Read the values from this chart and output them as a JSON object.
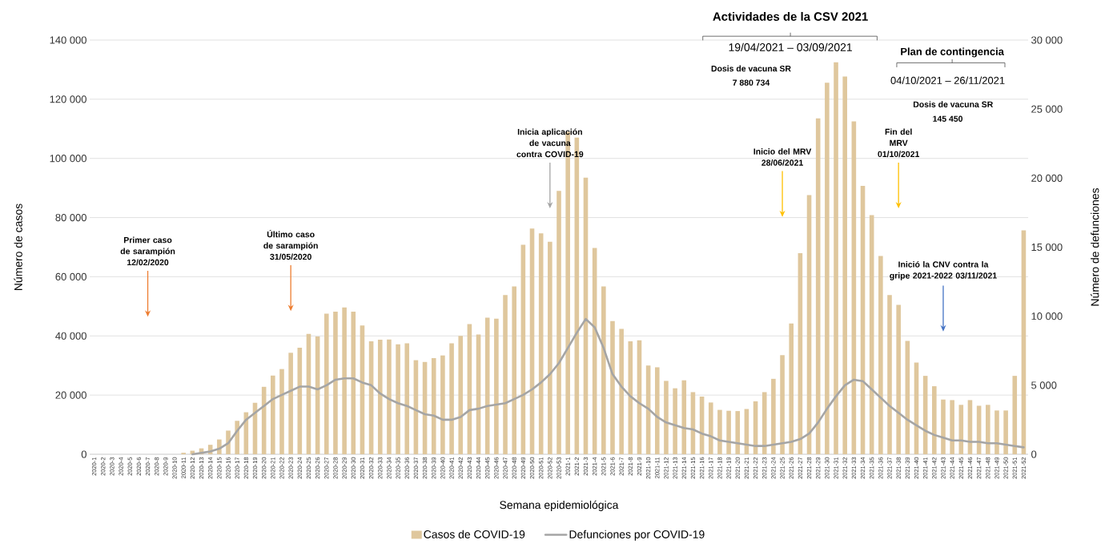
{
  "chart_data": {
    "type": "bar",
    "xlabel": "Semana epidemiológica",
    "ylabel": "Número de casos",
    "y2label": "Número de defunciones",
    "categories": [
      "2020-1",
      "2020-2",
      "2020-3",
      "2020-4",
      "2020-5",
      "2020-6",
      "2020-7",
      "2020-8",
      "2020-9",
      "2020-10",
      "2020-11",
      "2020-12",
      "2020-13",
      "2020-14",
      "2020-15",
      "2020-16",
      "2020-17",
      "2020-18",
      "2020-19",
      "2020-20",
      "2020-21",
      "2020-22",
      "2020-23",
      "2020-24",
      "2020-25",
      "2020-26",
      "2020-27",
      "2020-28",
      "2020-29",
      "2020-30",
      "2020-31",
      "2020-32",
      "2020-33",
      "2020-34",
      "2020-35",
      "2020-36",
      "2020-37",
      "2020-38",
      "2020-39",
      "2020-40",
      "2020-41",
      "2020-42",
      "2020-43",
      "2020-44",
      "2020-45",
      "2020-46",
      "2020-47",
      "2020-48",
      "2020-49",
      "2020-50",
      "2020-51",
      "2020-52",
      "2020-53",
      "2021-1",
      "2021-2",
      "2021-3",
      "2021-4",
      "2021-5",
      "2021-6",
      "2021-7",
      "2021-8",
      "2021-9",
      "2021-10",
      "2021-11",
      "2021-12",
      "2021-13",
      "2021-14",
      "2021-15",
      "2021-16",
      "2021-17",
      "2021-18",
      "2021-19",
      "2021-20",
      "2021-21",
      "2021-22",
      "2021-23",
      "2021-24",
      "2021-25",
      "2021-26",
      "2021-27",
      "2021-28",
      "2021-29",
      "2021-30",
      "2021-31",
      "2021-32",
      "2021-33",
      "2021-34",
      "2021-35",
      "2021-36",
      "2021-37",
      "2021-38",
      "2021-39",
      "2021-40",
      "2021-41",
      "2021-42",
      "2021-43",
      "2021-44",
      "2021-45",
      "2021-46",
      "2021-47",
      "2021-48",
      "2021-49",
      "2021-50",
      "2021-51",
      "2021-52"
    ],
    "series": [
      {
        "name": "Casos de COVID-19",
        "color": "#dfc79d",
        "values": [
          0,
          0,
          0,
          0,
          0,
          0,
          0,
          0,
          0,
          0,
          500,
          1200,
          2000,
          3200,
          5000,
          8000,
          11300,
          14200,
          17400,
          22800,
          26600,
          28800,
          34300,
          36000,
          40700,
          39800,
          47500,
          48200,
          49600,
          48200,
          43500,
          38200,
          38700,
          38800,
          37200,
          37500,
          31800,
          31200,
          32500,
          33400,
          37500,
          40000,
          44000,
          40500,
          46200,
          45800,
          53800,
          56700,
          70800,
          76300,
          74700,
          71800,
          89000,
          109000,
          107000,
          93500,
          69700,
          56700,
          45000,
          42400,
          38200,
          38500,
          30000,
          29400,
          24800,
          22300,
          25000,
          21000,
          19500,
          17500,
          15000,
          14700,
          14600,
          15300,
          17900,
          21000,
          25500,
          33500,
          44200,
          68000,
          87600,
          113500,
          125600,
          132500,
          127700,
          112500,
          90700,
          80800,
          67000,
          53800,
          50500,
          38300,
          31000,
          26500,
          23000,
          18500,
          18300,
          16700,
          18300,
          16400,
          16700,
          14800,
          14800,
          26500,
          75700
        ]
      },
      {
        "name": "Defunciones por COVID-19",
        "type": "line",
        "axis": "y2",
        "color": "#a5a5a5",
        "values": [
          null,
          null,
          null,
          null,
          null,
          null,
          null,
          null,
          null,
          null,
          null,
          0,
          100,
          200,
          400,
          800,
          1700,
          2500,
          3000,
          3500,
          4000,
          4300,
          4600,
          4900,
          4900,
          4700,
          5000,
          5400,
          5500,
          5500,
          5200,
          5000,
          4400,
          4000,
          3700,
          3500,
          3200,
          2900,
          2800,
          2500,
          2500,
          2700,
          3200,
          3300,
          3500,
          3600,
          3700,
          4000,
          4300,
          4700,
          5200,
          5800,
          6600,
          7700,
          8800,
          9800,
          9200,
          7700,
          5800,
          4900,
          4200,
          3700,
          3300,
          2700,
          2300,
          2100,
          1900,
          1800,
          1500,
          1300,
          1000,
          900,
          800,
          700,
          600,
          600,
          700,
          800,
          900,
          1100,
          1500,
          2300,
          3300,
          4200,
          5000,
          5400,
          5300,
          4700,
          4100,
          3500,
          3000,
          2500,
          2100,
          1700,
          1400,
          1200,
          1000,
          1000,
          900,
          900,
          800,
          800,
          700,
          600,
          500
        ]
      }
    ],
    "ylim": [
      0,
      140000
    ],
    "yticks": [
      0,
      {
        "value": 20000,
        "label": "20 000"
      },
      {
        "value": 40000,
        "label": "40 000"
      },
      {
        "value": 60000,
        "label": "60 000"
      },
      {
        "value": 80000,
        "label": "80 000"
      },
      {
        "value": 100000,
        "label": "100 000"
      },
      {
        "value": 120000,
        "label": "120 000"
      },
      {
        "value": 140000,
        "label": "140 000"
      }
    ],
    "y2lim": [
      0,
      30000
    ],
    "y2ticks": [
      0,
      {
        "value": 5000,
        "label": "5 000"
      },
      {
        "value": 10000,
        "label": "10 000"
      },
      {
        "value": 15000,
        "label": "15 000"
      },
      {
        "value": 20000,
        "label": "20 000"
      },
      {
        "value": 25000,
        "label": "25 000"
      },
      {
        "value": 30000,
        "label": "30 000"
      }
    ],
    "grid": "y",
    "legend": "bottom",
    "annotations": [
      "Primer caso de sarampión 12/02/2020",
      "Último caso de sarampión 31/05/2020",
      "Inicia aplicación de vacuna contra COVID-19",
      "Inicio del MRV 28/06/2021",
      "Fin del MRV 01/10/2021",
      "Inició la CNV contra la gripe 2021-2022 03/11/2021",
      "Actividades de la CSV 2021",
      "19/04/2021 – 03/09/2021",
      "Dosis de vacuna SR",
      "7 880 734",
      "Plan de contingencia",
      "04/10/2021 – 26/11/2021",
      "Dosis de vacuna SR",
      "145 450"
    ]
  }
}
